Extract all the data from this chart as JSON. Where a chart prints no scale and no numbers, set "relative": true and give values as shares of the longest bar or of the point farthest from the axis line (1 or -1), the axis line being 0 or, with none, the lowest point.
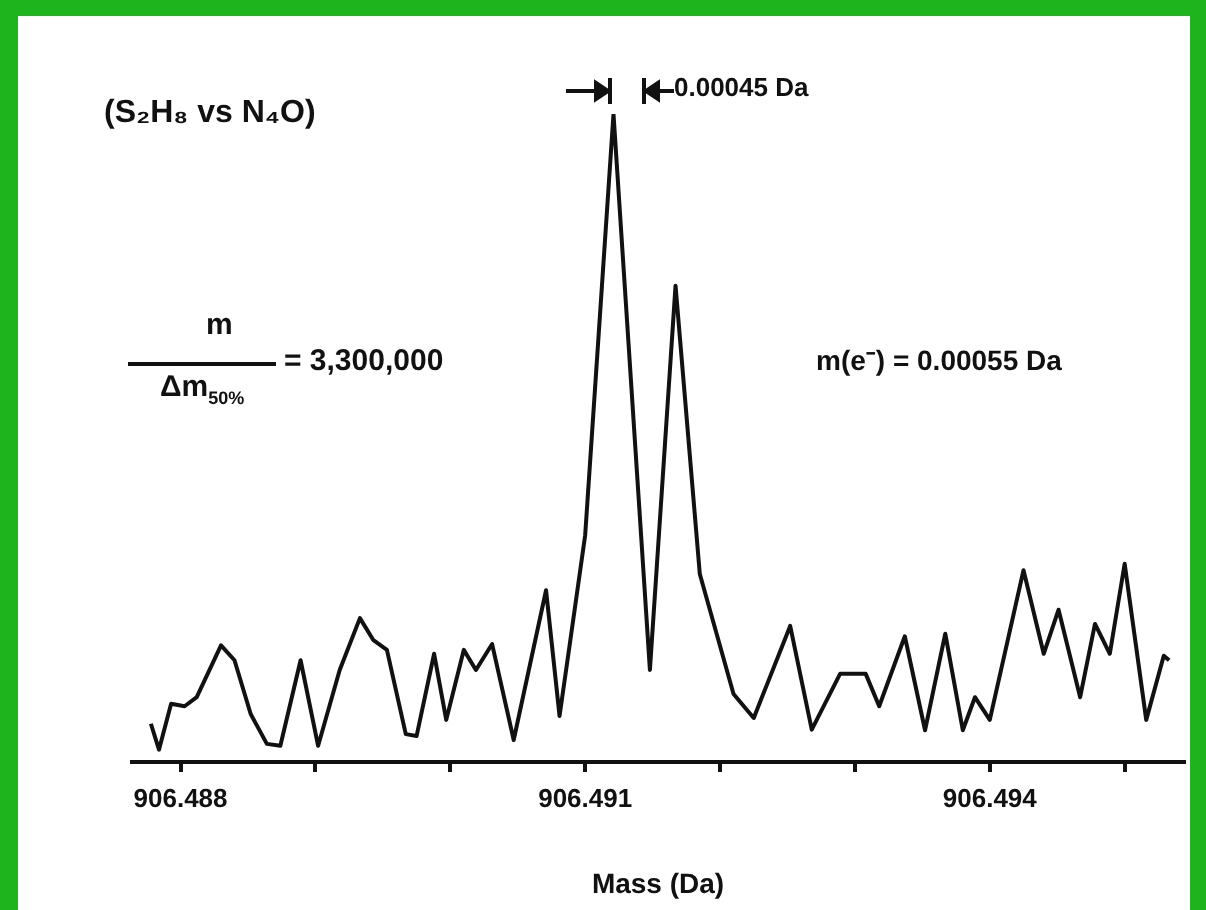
{
  "chart_data": {
    "type": "line",
    "relative": true,
    "xlabel": "Mass (Da)",
    "xlim": [
      906.48764,
      906.49544
    ],
    "xticks": [
      906.488,
      {
        "value": 906.489,
        "label": null
      },
      {
        "value": 906.49,
        "label": null
      },
      906.491,
      {
        "value": 906.492,
        "label": null
      },
      {
        "value": 906.493,
        "label": null
      },
      906.494,
      {
        "value": 906.495,
        "label": null
      }
    ],
    "annotations": [
      "(S₂H₈ vs N₄O)",
      "0.00045 Da",
      "m(e⁻) = 0.00055 Da",
      "m",
      "Δm$_{50%}$",
      "= 3,300,000"
    ],
    "marker": "none",
    "line_style": "solid",
    "grid": false,
    "legend": false,
    "series": [
      {
        "color": "#111111",
        "x": [
          906.48778,
          906.48784,
          906.48793,
          906.48803,
          906.48812,
          906.4883,
          906.4884,
          906.48852,
          906.48864,
          906.48874,
          906.48889,
          906.48902,
          906.48918,
          906.48933,
          906.48943,
          906.48953,
          906.48967,
          906.48975,
          906.48988,
          906.48997,
          906.4901,
          906.49019,
          906.49031,
          906.49047,
          906.49071,
          906.49081,
          906.49089,
          906.491,
          906.49121,
          906.49148,
          906.49167,
          906.49185,
          906.4921,
          906.49225,
          906.49252,
          906.49268,
          906.49289,
          906.49308,
          906.49318,
          906.49337,
          906.49352,
          906.49367,
          906.4938,
          906.49389,
          906.494,
          906.49425,
          906.4944,
          906.49451,
          906.49467,
          906.49478,
          906.49489,
          906.495,
          906.49516,
          906.49529,
          906.49533
        ],
        "values": [
          0.059,
          0.019,
          0.09,
          0.086,
          0.1,
          0.18,
          0.157,
          0.074,
          0.028,
          0.025,
          0.157,
          0.025,
          0.142,
          0.222,
          0.188,
          0.173,
          0.043,
          0.04,
          0.167,
          0.065,
          0.173,
          0.142,
          0.182,
          0.034,
          0.265,
          0.071,
          0.188,
          0.35,
          1.0,
          0.142,
          0.735,
          0.29,
          0.105,
          0.068,
          0.21,
          0.05,
          0.136,
          0.136,
          0.086,
          0.194,
          0.049,
          0.198,
          0.049,
          0.1,
          0.065,
          0.296,
          0.167,
          0.235,
          0.1,
          0.213,
          0.167,
          0.306,
          0.065,
          0.164,
          0.157
        ]
      }
    ]
  }
}
